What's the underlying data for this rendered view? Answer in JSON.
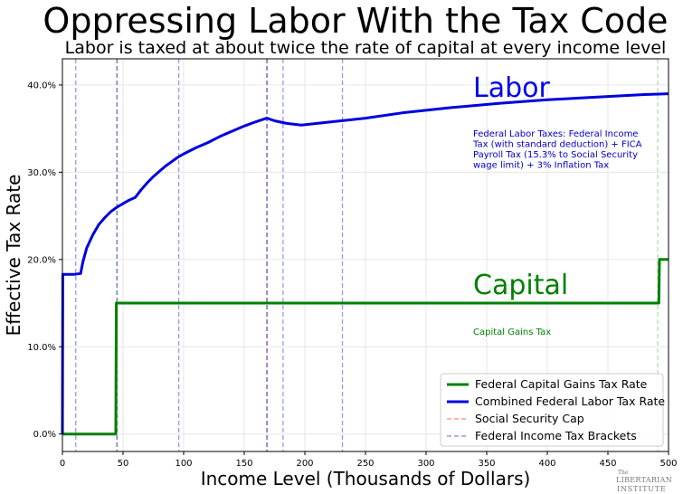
{
  "chart_data": {
    "type": "line",
    "title": "Oppressing Labor With the Tax Code",
    "subtitle": "Labor is taxed at about twice the rate of capital at every income level",
    "xlabel": "Income Level (Thousands of Dollars)",
    "ylabel": "Effective Tax Rate",
    "xlim": [
      0,
      500
    ],
    "ylim": [
      -2,
      43
    ],
    "x_ticks": [
      "0",
      "50",
      "100",
      "150",
      "200",
      "250",
      "300",
      "350",
      "400",
      "450",
      "500"
    ],
    "x_tick_values": [
      0,
      50,
      100,
      150,
      200,
      250,
      300,
      350,
      400,
      450,
      500
    ],
    "y_ticks": [
      "0.0%",
      "10.0%",
      "20.0%",
      "30.0%",
      "40.0%"
    ],
    "y_tick_values": [
      0,
      10,
      20,
      30,
      40
    ],
    "grid": true,
    "legend_position": "bottom-right",
    "series": [
      {
        "name": "Federal Capital Gains Tax Rate",
        "color": "#008000",
        "points": [
          [
            0,
            0
          ],
          [
            44,
            0
          ],
          [
            44.5,
            15
          ],
          [
            492,
            15
          ],
          [
            492.5,
            20
          ],
          [
            500,
            20
          ]
        ]
      },
      {
        "name": "Combined Federal Labor Tax Rate",
        "color": "#0000dd",
        "points": [
          [
            0,
            0
          ],
          [
            0.3,
            18.3
          ],
          [
            10,
            18.3
          ],
          [
            15,
            18.4
          ],
          [
            17,
            19.8
          ],
          [
            20,
            21.3
          ],
          [
            25,
            22.8
          ],
          [
            30,
            24.0
          ],
          [
            35,
            24.8
          ],
          [
            40,
            25.5
          ],
          [
            45,
            26.0
          ],
          [
            50,
            26.4
          ],
          [
            55,
            26.8
          ],
          [
            60,
            27.1
          ],
          [
            65,
            28.0
          ],
          [
            70,
            28.8
          ],
          [
            75,
            29.5
          ],
          [
            80,
            30.1
          ],
          [
            85,
            30.7
          ],
          [
            90,
            31.2
          ],
          [
            95,
            31.7
          ],
          [
            100,
            32.1
          ],
          [
            110,
            32.8
          ],
          [
            120,
            33.4
          ],
          [
            130,
            34.1
          ],
          [
            140,
            34.7
          ],
          [
            150,
            35.3
          ],
          [
            160,
            35.8
          ],
          [
            168.6,
            36.2
          ],
          [
            175,
            35.9
          ],
          [
            185,
            35.6
          ],
          [
            197,
            35.4
          ],
          [
            210,
            35.6
          ],
          [
            230,
            35.9
          ],
          [
            250,
            36.2
          ],
          [
            280,
            36.8
          ],
          [
            320,
            37.4
          ],
          [
            360,
            37.9
          ],
          [
            400,
            38.3
          ],
          [
            440,
            38.6
          ],
          [
            480,
            38.9
          ],
          [
            500,
            39.0
          ]
        ]
      }
    ],
    "reference_lines": [
      {
        "name": "Social Security Cap",
        "color": "#ff9999",
        "x_values": [
          168.6,
          491
        ]
      },
      {
        "name": "Federal Income Tax Brackets",
        "color": "#9999ee",
        "x_values": [
          11,
          45,
          96,
          169,
          182,
          231
        ]
      }
    ],
    "annotations": [
      {
        "text": "Labor",
        "color": "#0000ee"
      },
      {
        "text": "Federal Labor Taxes:  Federal Income Tax (with standard deduction) + FICA Payroll Tax (15.3% to Social Security wage limit) + 3% Inflation Tax",
        "color": "#0000cc"
      },
      {
        "text": "Capital",
        "color": "#008000"
      },
      {
        "text": "Capital Gains Tax",
        "color": "#008000"
      }
    ],
    "logo": [
      "The",
      "LIBERTARIAN",
      "INSTITUTE"
    ]
  }
}
